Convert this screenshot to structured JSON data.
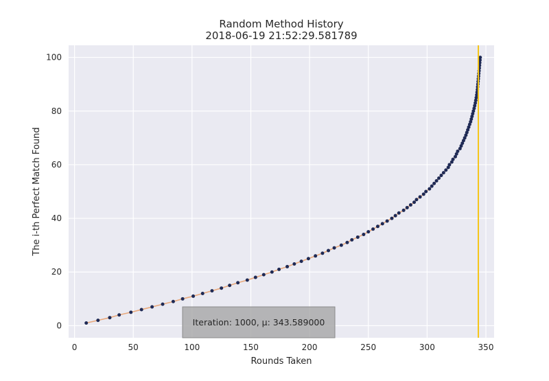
{
  "chart_data": {
    "type": "scatter",
    "title": "Random Method History",
    "subtitle": "2018-06-19 21:52:29.581789",
    "xlabel": "Rounds Taken",
    "ylabel": "The i-th Perfect Match Found",
    "xlim": [
      -5,
      357
    ],
    "ylim": [
      -4.5,
      104.5
    ],
    "x_ticks": [
      0,
      50,
      100,
      150,
      200,
      250,
      300,
      350
    ],
    "y_ticks": [
      0,
      20,
      40,
      60,
      80,
      100
    ],
    "grid": true,
    "legend": "none",
    "series": [
      {
        "marker_color": "#1f2a55",
        "line_color": "#e8a87c",
        "points": [
          [
            10,
            1
          ],
          [
            20,
            2
          ],
          [
            30,
            3
          ],
          [
            38,
            4
          ],
          [
            48,
            5
          ],
          [
            57,
            6
          ],
          [
            66,
            7
          ],
          [
            75,
            8
          ],
          [
            84,
            9
          ],
          [
            92,
            10
          ],
          [
            101,
            11
          ],
          [
            109,
            12
          ],
          [
            117,
            13
          ],
          [
            125,
            14
          ],
          [
            132,
            15
          ],
          [
            139,
            16
          ],
          [
            147,
            17
          ],
          [
            154,
            18
          ],
          [
            161,
            19
          ],
          [
            168,
            20
          ],
          [
            174,
            21
          ],
          [
            181,
            22
          ],
          [
            187,
            23
          ],
          [
            193,
            24
          ],
          [
            199,
            25
          ],
          [
            205,
            26
          ],
          [
            211,
            27
          ],
          [
            216,
            28
          ],
          [
            221,
            29
          ],
          [
            227,
            30
          ],
          [
            232,
            31
          ],
          [
            236,
            32
          ],
          [
            241,
            33
          ],
          [
            246,
            34
          ],
          [
            250,
            35
          ],
          [
            254,
            36
          ],
          [
            258,
            37
          ],
          [
            262,
            38
          ],
          [
            266,
            39
          ],
          [
            270,
            40
          ],
          [
            273,
            41
          ],
          [
            276,
            42
          ],
          [
            280,
            43
          ],
          [
            283,
            44
          ],
          [
            286,
            45
          ],
          [
            289,
            46
          ],
          [
            291,
            47
          ],
          [
            294,
            48
          ],
          [
            297,
            49
          ],
          [
            299,
            50
          ],
          [
            302,
            51
          ],
          [
            304,
            52
          ],
          [
            306,
            53
          ],
          [
            308,
            54
          ],
          [
            310,
            55
          ],
          [
            312,
            56
          ],
          [
            314,
            57
          ],
          [
            316,
            58
          ],
          [
            318,
            59
          ],
          [
            319,
            60
          ],
          [
            321,
            61
          ],
          [
            322,
            62
          ],
          [
            324,
            63
          ],
          [
            325,
            64
          ],
          [
            326,
            65
          ],
          [
            328,
            66
          ],
          [
            329,
            67
          ],
          [
            330,
            68
          ],
          [
            331,
            69
          ],
          [
            332,
            70
          ],
          [
            333,
            71
          ],
          [
            333.8,
            72
          ],
          [
            334.6,
            73
          ],
          [
            335.4,
            74
          ],
          [
            336.2,
            75
          ],
          [
            337,
            76
          ],
          [
            337.6,
            77
          ],
          [
            338.2,
            78
          ],
          [
            338.8,
            79
          ],
          [
            339.4,
            80
          ],
          [
            340,
            81
          ],
          [
            340.5,
            82
          ],
          [
            341,
            83
          ],
          [
            341.4,
            84
          ],
          [
            341.8,
            85
          ],
          [
            342.2,
            86
          ],
          [
            342.5,
            87
          ],
          [
            342.8,
            88
          ],
          [
            343,
            89
          ],
          [
            343.2,
            90
          ],
          [
            343.4,
            91
          ],
          [
            343.6,
            92
          ],
          [
            343.8,
            93
          ],
          [
            344,
            94
          ],
          [
            344.2,
            95
          ],
          [
            344.4,
            96
          ],
          [
            344.6,
            97
          ],
          [
            344.8,
            98
          ],
          [
            345,
            99
          ],
          [
            345.2,
            100
          ]
        ]
      }
    ],
    "mean_line": {
      "x": 343.589,
      "color": "#f5c518"
    },
    "annotation": {
      "text": "Iteration: 1000, μ:  343.589000"
    }
  },
  "colors": {
    "plot_background": "#eaeaf2",
    "grid": "#ffffff",
    "marker": "#1f2a55",
    "connector": "#e8a87c",
    "mean_line": "#f5c518",
    "annotation_box": "#a6a6a6"
  }
}
